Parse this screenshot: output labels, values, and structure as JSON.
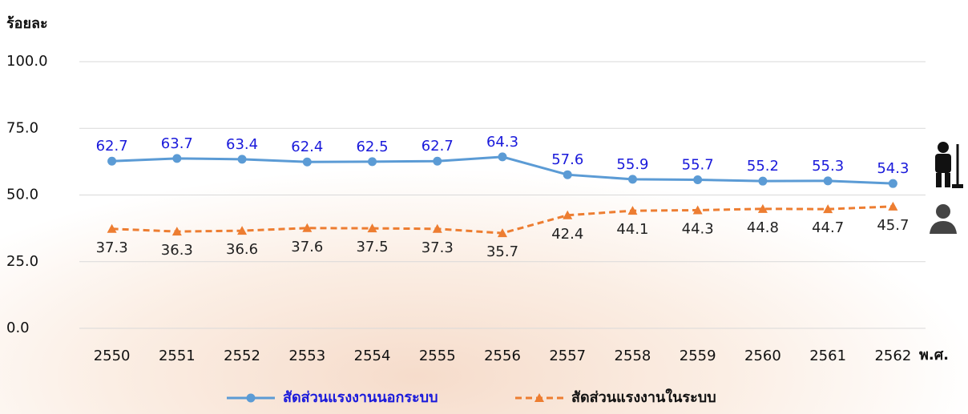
{
  "chart_data": {
    "type": "line",
    "y_label": "ร้อยละ",
    "x_label": "พ.ศ.",
    "categories": [
      "2550",
      "2551",
      "2552",
      "2553",
      "2554",
      "2555",
      "2556",
      "2557",
      "2558",
      "2559",
      "2560",
      "2561",
      "2562"
    ],
    "series": [
      {
        "name": "สัดส่วนแรงงานนอกระบบ",
        "color": "#5b9bd5",
        "label_color": "#1a1adb",
        "marker": "circle",
        "dashed": false,
        "values": [
          62.7,
          63.7,
          63.4,
          62.4,
          62.5,
          62.7,
          64.3,
          57.6,
          55.9,
          55.7,
          55.2,
          55.3,
          54.3
        ]
      },
      {
        "name": "สัดส่วนแรงงานในระบบ",
        "color": "#ed7d31",
        "label_color": "#222222",
        "marker": "triangle",
        "dashed": true,
        "values": [
          37.3,
          36.3,
          36.6,
          37.6,
          37.5,
          37.3,
          35.7,
          42.4,
          44.1,
          44.3,
          44.8,
          44.7,
          45.7
        ]
      }
    ],
    "ylim": [
      0,
      100
    ],
    "yticks": [
      {
        "value": 0,
        "label": "0.0"
      },
      {
        "value": 25,
        "label": "25.0"
      },
      {
        "value": 50,
        "label": "50.0"
      },
      {
        "value": 75,
        "label": "75.0"
      },
      {
        "value": 100,
        "label": "100.0"
      }
    ],
    "grid": true
  }
}
